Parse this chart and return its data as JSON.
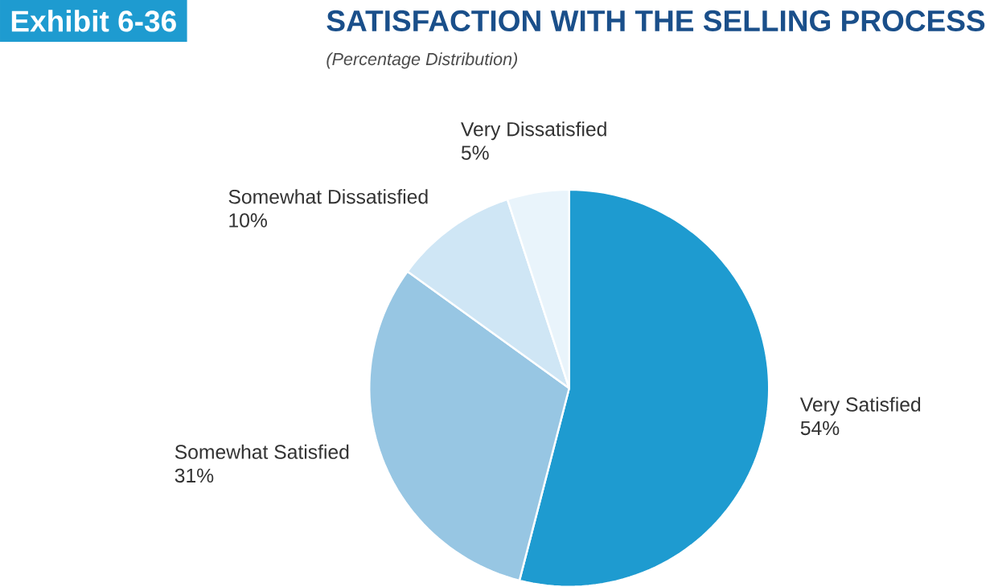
{
  "chart_data": {
    "type": "pie",
    "title": "SATISFACTION WITH THE SELLING PROCESS",
    "subtitle": "(Percentage Distribution)",
    "annotations": [
      "Exhibit 6-36"
    ],
    "categories": [
      "Very Satisfied",
      "Somewhat Satisfied",
      "Somewhat Dissatisfied",
      "Very Dissatisfied"
    ],
    "values": [
      54,
      31,
      10,
      5
    ],
    "value_labels": [
      "54%",
      "31%",
      "10%",
      "5%"
    ],
    "colors": [
      "#1e9bd0",
      "#97c6e3",
      "#cfe6f5",
      "#e9f4fb"
    ]
  }
}
